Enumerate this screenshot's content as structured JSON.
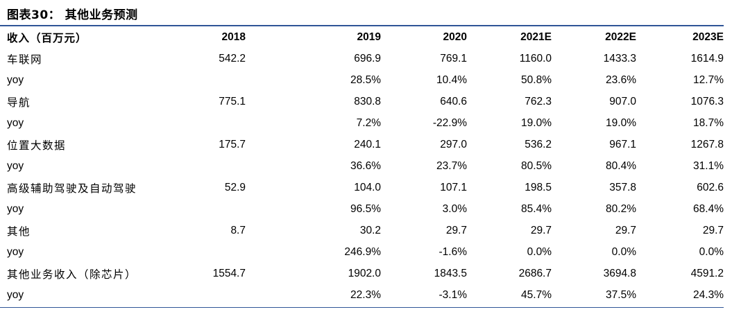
{
  "figure": {
    "title": "图表30：  其他业务预测"
  },
  "table": {
    "header": {
      "label": "收入（百万元）",
      "years": [
        "2018",
        "2019",
        "2020",
        "2021E",
        "2022E",
        "2023E"
      ]
    },
    "rows": [
      {
        "label": "车联网",
        "values": [
          "542.2",
          "696.9",
          "769.1",
          "1160.0",
          "1433.3",
          "1614.9"
        ]
      },
      {
        "label": "yoy",
        "values": [
          "",
          "28.5%",
          "10.4%",
          "50.8%",
          "23.6%",
          "12.7%"
        ]
      },
      {
        "label": "导航",
        "values": [
          "775.1",
          "830.8",
          "640.6",
          "762.3",
          "907.0",
          "1076.3"
        ]
      },
      {
        "label": "yoy",
        "values": [
          "",
          "7.2%",
          "-22.9%",
          "19.0%",
          "19.0%",
          "18.7%"
        ]
      },
      {
        "label": "位置大数据",
        "values": [
          "175.7",
          "240.1",
          "297.0",
          "536.2",
          "967.1",
          "1267.8"
        ]
      },
      {
        "label": "yoy",
        "values": [
          "",
          "36.6%",
          "23.7%",
          "80.5%",
          "80.4%",
          "31.1%"
        ]
      },
      {
        "label": "高级辅助驾驶及自动驾驶",
        "values": [
          "52.9",
          "104.0",
          "107.1",
          "198.5",
          "357.8",
          "602.6"
        ]
      },
      {
        "label": "yoy",
        "values": [
          "",
          "96.5%",
          "3.0%",
          "85.4%",
          "80.2%",
          "68.4%"
        ]
      },
      {
        "label": "其他",
        "values": [
          "8.7",
          "30.2",
          "29.7",
          "29.7",
          "29.7",
          "29.7"
        ]
      },
      {
        "label": "yoy",
        "values": [
          "",
          "246.9%",
          "-1.6%",
          "0.0%",
          "0.0%",
          "0.0%"
        ]
      },
      {
        "label": "其他业务收入（除芯片）",
        "values": [
          "1554.7",
          "1902.0",
          "1843.5",
          "2686.7",
          "3694.8",
          "4591.2"
        ]
      },
      {
        "label": "yoy",
        "values": [
          "",
          "22.3%",
          "-3.1%",
          "45.7%",
          "37.5%",
          "24.3%"
        ]
      }
    ]
  },
  "colors": {
    "rule": "#2f5597"
  }
}
